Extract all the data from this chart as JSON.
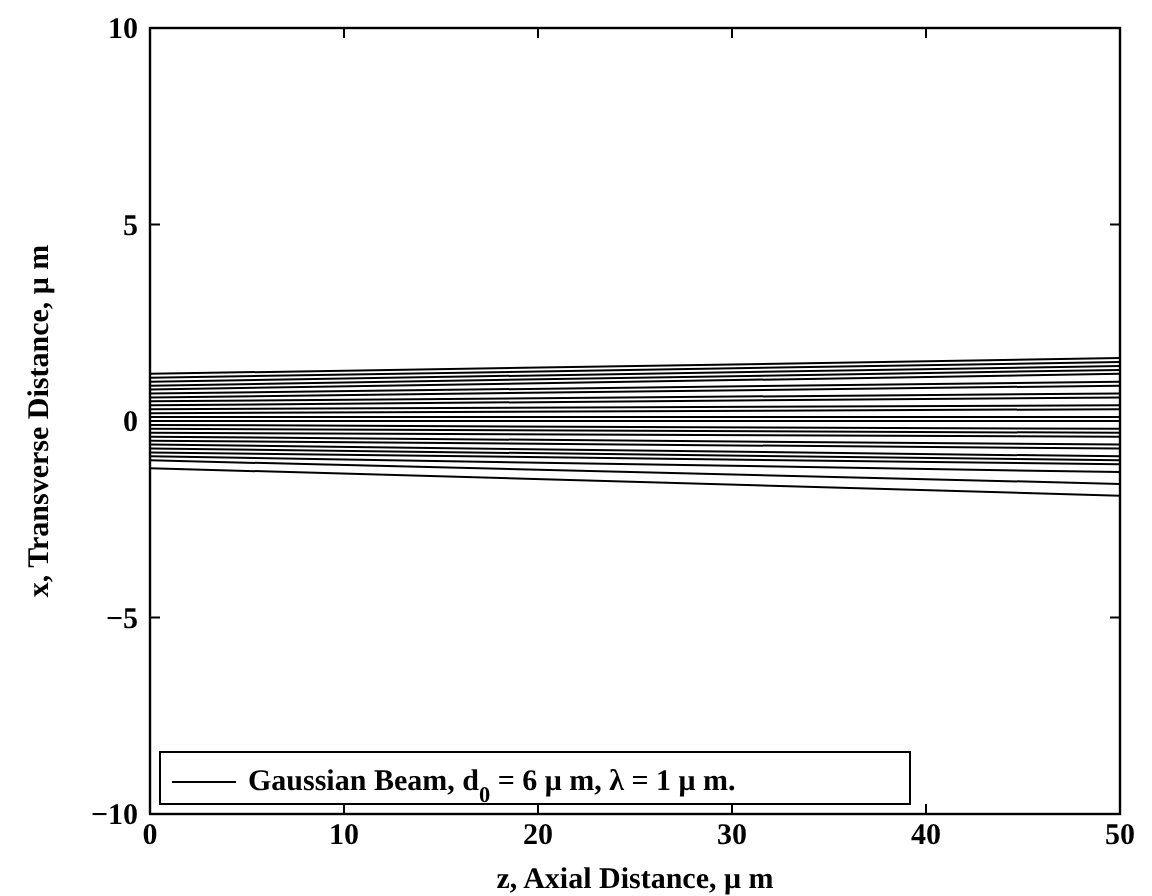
{
  "chart_data": {
    "type": "line",
    "xlabel": "z, Axial Distance, μ m",
    "ylabel": "x, Transverse Distance, μ m",
    "x": [
      0,
      50
    ],
    "xlim": [
      0,
      50
    ],
    "ylim": [
      -10,
      10
    ],
    "xticks": [
      0,
      10,
      20,
      30,
      40,
      50
    ],
    "yticks": [
      -10,
      -5,
      0,
      5,
      10
    ],
    "grid": false,
    "legend": "bottom left",
    "line_style": "solid",
    "series": [
      {
        "name": "Gaussian Beam, d$_{0}$ = 6 μ m, λ = 1 μ m.",
        "color": "#000000",
        "values": [
          1.2,
          1.6
        ]
      },
      {
        "color": "#000000",
        "values": [
          1.1,
          1.5
        ]
      },
      {
        "color": "#000000",
        "values": [
          1.0,
          1.4
        ]
      },
      {
        "color": "#000000",
        "values": [
          0.9,
          1.3
        ]
      },
      {
        "color": "#000000",
        "values": [
          0.8,
          1.2
        ]
      },
      {
        "color": "#000000",
        "values": [
          0.7,
          1.0
        ]
      },
      {
        "color": "#000000",
        "values": [
          0.6,
          0.9
        ]
      },
      {
        "color": "#000000",
        "values": [
          0.5,
          0.7
        ]
      },
      {
        "color": "#000000",
        "values": [
          0.4,
          0.6
        ]
      },
      {
        "color": "#000000",
        "values": [
          0.3,
          0.4
        ]
      },
      {
        "color": "#000000",
        "values": [
          0.2,
          0.3
        ]
      },
      {
        "color": "#000000",
        "values": [
          0.1,
          0.1
        ]
      },
      {
        "color": "#000000",
        "values": [
          0,
          0
        ]
      },
      {
        "color": "#000000",
        "values": [
          -0.1,
          -0.2
        ]
      },
      {
        "color": "#000000",
        "values": [
          -0.2,
          -0.3
        ]
      },
      {
        "color": "#000000",
        "values": [
          -0.3,
          -0.4
        ]
      },
      {
        "color": "#000000",
        "values": [
          -0.4,
          -0.6
        ]
      },
      {
        "color": "#000000",
        "values": [
          -0.5,
          -0.7
        ]
      },
      {
        "color": "#000000",
        "values": [
          -0.6,
          -0.9
        ]
      },
      {
        "color": "#000000",
        "values": [
          -0.7,
          -1.0
        ]
      },
      {
        "color": "#000000",
        "values": [
          -0.8,
          -1.1
        ]
      },
      {
        "color": "#000000",
        "values": [
          -0.9,
          -1.3
        ]
      },
      {
        "color": "#000000",
        "values": [
          -1.0,
          -1.6
        ]
      },
      {
        "color": "#000000",
        "values": [
          -1.2,
          -1.9
        ]
      }
    ]
  }
}
